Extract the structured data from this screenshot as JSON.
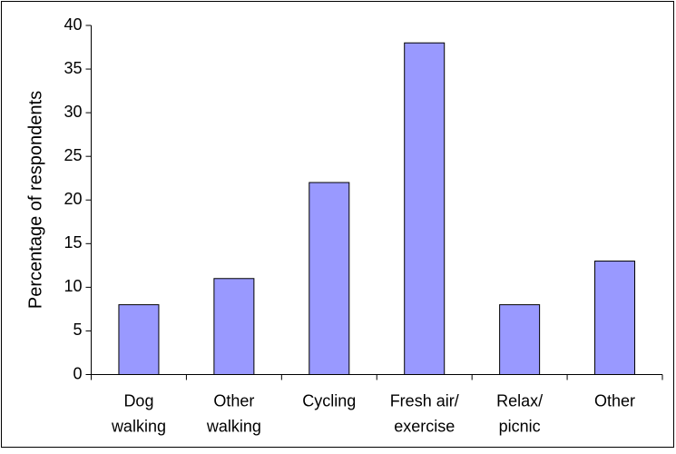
{
  "chart_data": {
    "type": "bar",
    "y_label": "Percentage of respondents",
    "categories": [
      [
        "Dog",
        "walking"
      ],
      [
        "Other",
        "walking"
      ],
      [
        "Cycling"
      ],
      [
        "Fresh air/",
        "exercise"
      ],
      [
        "Relax/",
        "picnic"
      ],
      [
        "Other"
      ]
    ],
    "values": [
      8,
      11,
      22,
      38,
      8,
      13
    ],
    "color": "#9999ff",
    "ylim": [
      0,
      40
    ],
    "yticks": [
      0,
      5,
      10,
      15,
      20,
      25,
      30,
      35,
      40
    ],
    "grid": false
  }
}
